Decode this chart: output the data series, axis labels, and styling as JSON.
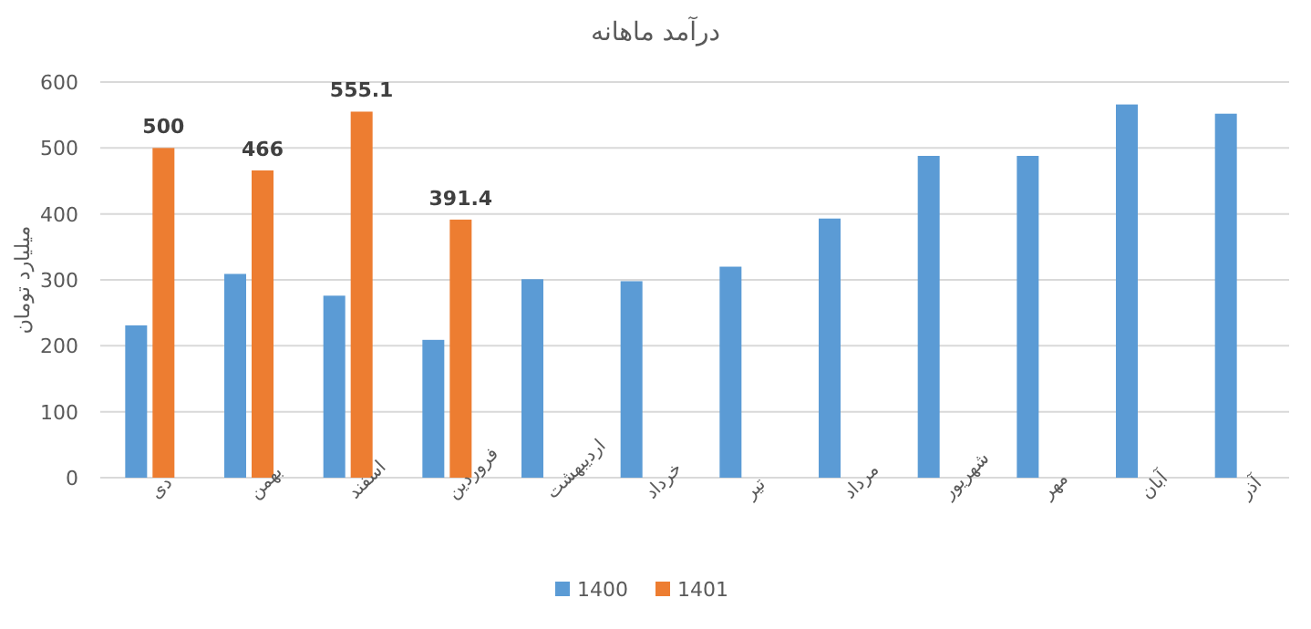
{
  "chart_data": {
    "type": "bar",
    "title": "درآمد ماهانه",
    "ylabel": "میلیارد تومان",
    "categories": [
      "دی",
      "بهمن",
      "اسفند",
      "فروردین",
      "اردیبهشت",
      "خرداد",
      "تیر",
      "مرداد",
      "شهریور",
      "مهر",
      "آبان",
      "آذر"
    ],
    "series": [
      {
        "name": "1400",
        "color": "#5b9bd5",
        "values": [
          231,
          309,
          276,
          209,
          301,
          298,
          320,
          393,
          488,
          488,
          566,
          552
        ]
      },
      {
        "name": "1401",
        "color": "#ed7d31",
        "values": [
          500,
          466,
          555.1,
          391.4,
          null,
          null,
          null,
          null,
          null,
          null,
          null,
          null
        ],
        "value_labels": [
          "500",
          "466",
          "555.1",
          "391.4",
          null,
          null,
          null,
          null,
          null,
          null,
          null,
          null
        ]
      }
    ],
    "ylim": [
      0,
      600
    ],
    "yticks": [
      0,
      100,
      200,
      300,
      400,
      500,
      600
    ],
    "grid": "y",
    "legend": "bottom"
  }
}
